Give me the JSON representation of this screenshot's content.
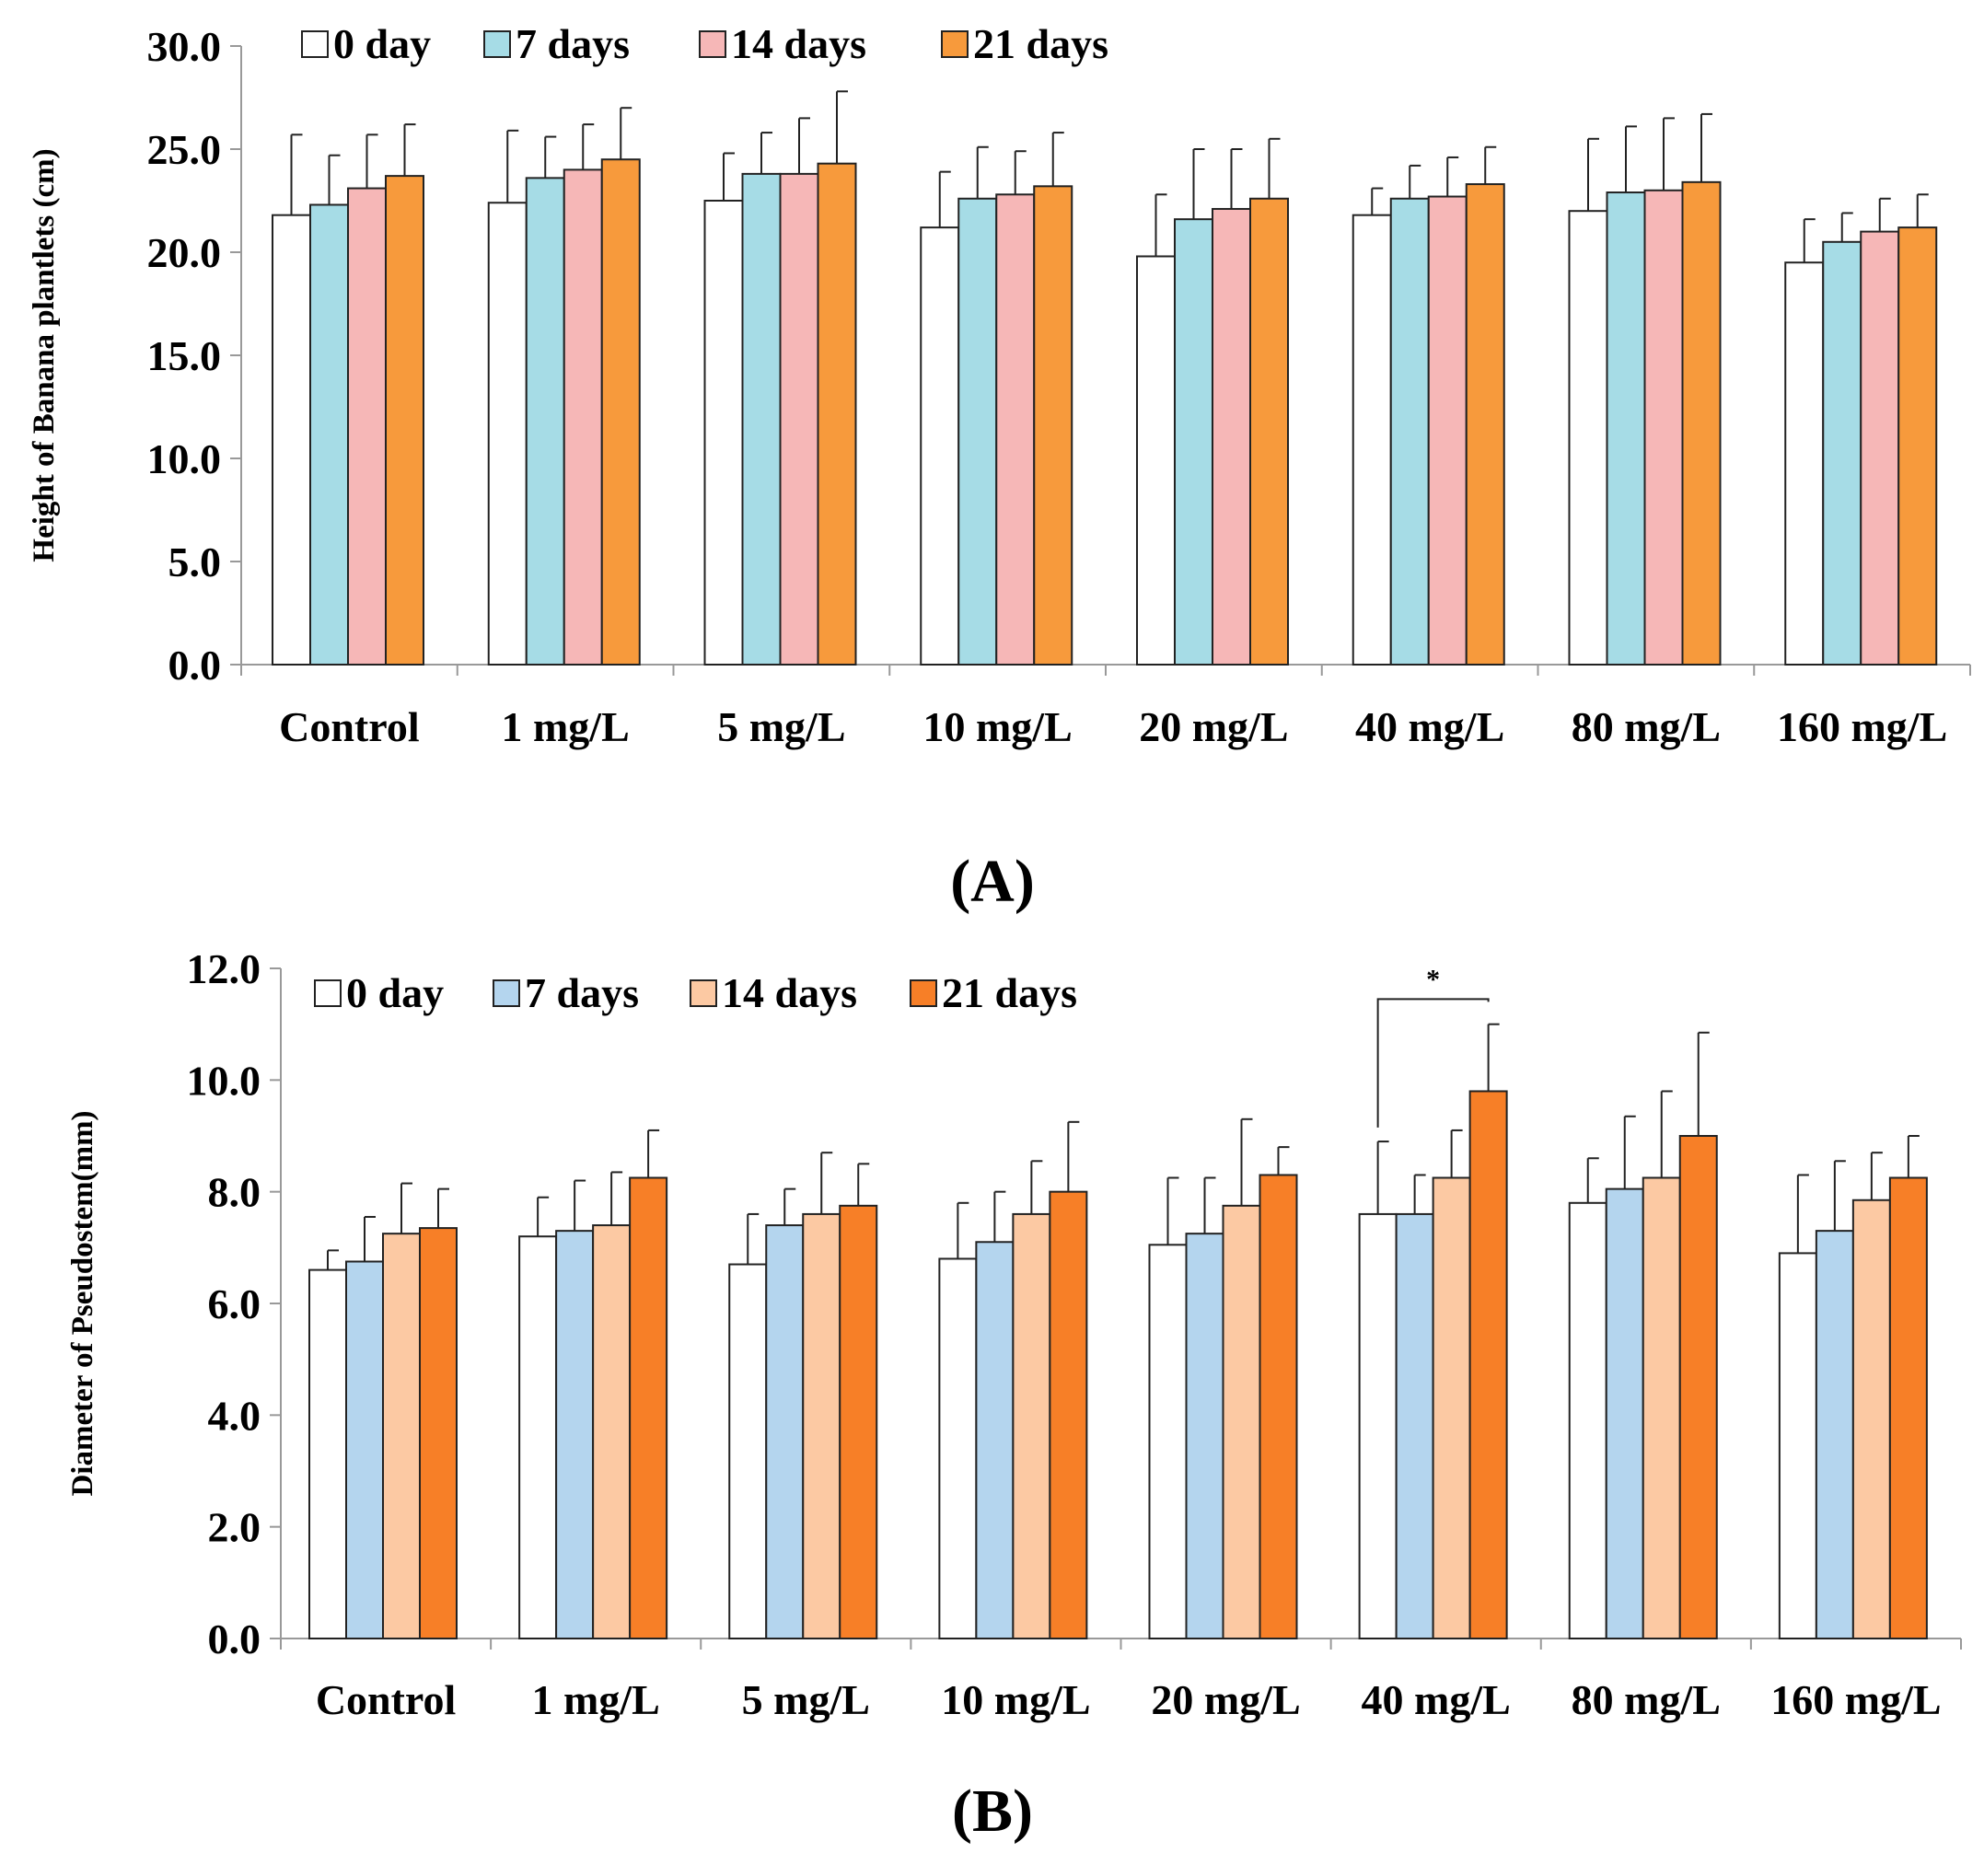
{
  "chart_data": [
    {
      "type": "bar",
      "panel_label": "(A)",
      "ylabel": "Height of Banana plantlets (cm)",
      "xlabel": "",
      "ylim": [
        0,
        30
      ],
      "yticks": [
        "0.0",
        "5.0",
        "10.0",
        "15.0",
        "20.0",
        "25.0",
        "30.0"
      ],
      "categories": [
        "Control",
        "1 mg/L",
        "5 mg/L",
        "10 mg/L",
        "20 mg/L",
        "40 mg/L",
        "80 mg/L",
        "160 mg/L"
      ],
      "legend_position": "top-left",
      "series": [
        {
          "name": "0 day",
          "color": "#ffffff",
          "values": [
            21.8,
            22.4,
            22.5,
            21.2,
            19.8,
            21.8,
            22.0,
            19.5
          ],
          "errors": [
            3.9,
            3.5,
            2.3,
            2.7,
            3.0,
            1.3,
            3.5,
            2.1
          ]
        },
        {
          "name": "7 days",
          "color": "#a6dce6",
          "values": [
            22.3,
            23.6,
            23.8,
            22.6,
            21.6,
            22.6,
            22.9,
            20.5
          ],
          "errors": [
            2.4,
            2.0,
            2.0,
            2.5,
            3.4,
            1.6,
            3.2,
            1.4
          ]
        },
        {
          "name": "14 days",
          "color": "#f6b7b7",
          "values": [
            23.1,
            24.0,
            23.8,
            22.8,
            22.1,
            22.7,
            23.0,
            21.0
          ],
          "errors": [
            2.6,
            2.2,
            2.7,
            2.1,
            2.9,
            1.9,
            3.5,
            1.6
          ]
        },
        {
          "name": "21 days",
          "color": "#f79a3c",
          "values": [
            23.7,
            24.5,
            24.3,
            23.2,
            22.6,
            23.3,
            23.4,
            21.2
          ],
          "errors": [
            2.5,
            2.5,
            3.5,
            2.6,
            2.9,
            1.8,
            3.3,
            1.6
          ]
        }
      ]
    },
    {
      "type": "bar",
      "panel_label": "(B)",
      "ylabel": "Diameter of Pseudostem(mm)",
      "xlabel": "",
      "ylim": [
        0,
        12
      ],
      "yticks": [
        "0.0",
        "2.0",
        "4.0",
        "6.0",
        "8.0",
        "10.0",
        "12.0"
      ],
      "categories": [
        "Control",
        "1 mg/L",
        "5 mg/L",
        "10 mg/L",
        "20 mg/L",
        "40 mg/L",
        "80 mg/L",
        "160 mg/L"
      ],
      "legend_position": "top-left",
      "series": [
        {
          "name": "0 day",
          "color": "#ffffff",
          "values": [
            6.6,
            7.2,
            6.7,
            6.8,
            7.05,
            7.6,
            7.8,
            6.9
          ],
          "errors": [
            0.35,
            0.7,
            0.9,
            1.0,
            1.2,
            1.3,
            0.8,
            1.4
          ]
        },
        {
          "name": "7 days",
          "color": "#b4d5ee",
          "values": [
            6.75,
            7.3,
            7.4,
            7.1,
            7.25,
            7.6,
            8.05,
            7.3
          ],
          "errors": [
            0.8,
            0.9,
            0.65,
            0.9,
            1.0,
            0.7,
            1.3,
            1.25
          ]
        },
        {
          "name": "14 days",
          "color": "#fcc9a3",
          "values": [
            7.25,
            7.4,
            7.6,
            7.6,
            7.75,
            8.25,
            8.25,
            7.85
          ],
          "errors": [
            0.9,
            0.95,
            1.1,
            0.95,
            1.55,
            0.85,
            1.55,
            0.85
          ]
        },
        {
          "name": "21 days",
          "color": "#f77f27",
          "values": [
            7.35,
            8.25,
            7.75,
            8.0,
            8.3,
            9.8,
            9.0,
            8.25
          ],
          "errors": [
            0.7,
            0.85,
            0.75,
            1.25,
            0.5,
            1.2,
            1.85,
            0.75
          ]
        }
      ],
      "annotations": [
        {
          "text": "*",
          "category": "40 mg/L",
          "from_series": "0 day",
          "to_series": "21 days",
          "y": 11.45
        }
      ]
    }
  ]
}
